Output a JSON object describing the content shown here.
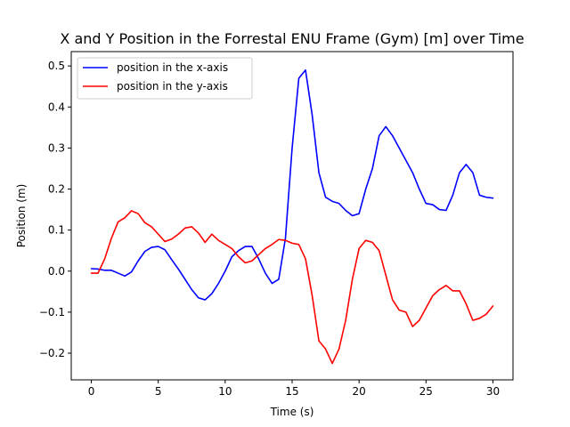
{
  "chart_data": {
    "type": "line",
    "title": "X and Y Position in the Forrestal ENU Frame (Gym) [m] over Time",
    "xlabel": "Time (s)",
    "ylabel": "Position (m)",
    "xlim": [
      -1.5,
      31.5
    ],
    "ylim": [
      -0.265,
      0.535
    ],
    "xticks": [
      0,
      5,
      10,
      15,
      20,
      25,
      30
    ],
    "xtick_labels": [
      "0",
      "5",
      "10",
      "15",
      "20",
      "25",
      "30"
    ],
    "yticks": [
      -0.2,
      -0.1,
      0.0,
      0.1,
      0.2,
      0.3,
      0.4,
      0.5
    ],
    "ytick_labels": [
      "−0.2",
      "−0.1",
      "0.0",
      "0.1",
      "0.2",
      "0.3",
      "0.4",
      "0.5"
    ],
    "grid": false,
    "legend_position": "top-left",
    "series": [
      {
        "name": "position in the x-axis",
        "color": "#0000ff",
        "x": [
          0,
          0.5,
          1.0,
          1.5,
          2.0,
          2.5,
          3.0,
          3.5,
          4.0,
          4.5,
          5.0,
          5.5,
          6.0,
          6.5,
          7.0,
          7.5,
          8.0,
          8.5,
          9.0,
          9.5,
          10.0,
          10.5,
          11.0,
          11.5,
          12.0,
          12.5,
          13.0,
          13.5,
          14.0,
          14.5,
          15.0,
          15.5,
          16.0,
          16.5,
          17.0,
          17.5,
          18.0,
          18.5,
          19.0,
          19.5,
          20.0,
          20.5,
          21.0,
          21.5,
          22.0,
          22.5,
          23.0,
          23.5,
          24.0,
          24.5,
          25.0,
          25.5,
          26.0,
          26.5,
          27.0,
          27.5,
          28.0,
          28.5,
          29.0,
          29.5,
          30.0
        ],
        "y": [
          0.006,
          0.005,
          0.002,
          0.002,
          -0.005,
          -0.012,
          -0.002,
          0.025,
          0.048,
          0.058,
          0.06,
          0.052,
          0.028,
          0.005,
          -0.02,
          -0.045,
          -0.065,
          -0.07,
          -0.055,
          -0.03,
          0.0,
          0.035,
          0.05,
          0.06,
          0.06,
          0.03,
          -0.005,
          -0.03,
          -0.02,
          0.08,
          0.3,
          0.47,
          0.49,
          0.38,
          0.24,
          0.18,
          0.17,
          0.165,
          0.148,
          0.135,
          0.14,
          0.2,
          0.25,
          0.33,
          0.352,
          0.33,
          0.3,
          0.27,
          0.24,
          0.2,
          0.165,
          0.162,
          0.15,
          0.148,
          0.185,
          0.24,
          0.26,
          0.24,
          0.185,
          0.18,
          0.178
        ]
      },
      {
        "name": "position in the y-axis",
        "color": "#ff0000",
        "x": [
          0,
          0.5,
          1.0,
          1.5,
          2.0,
          2.5,
          3.0,
          3.5,
          4.0,
          4.5,
          5.0,
          5.5,
          6.0,
          6.5,
          7.0,
          7.5,
          8.0,
          8.5,
          9.0,
          9.5,
          10.0,
          10.5,
          11.0,
          11.5,
          12.0,
          12.5,
          13.0,
          13.5,
          14.0,
          14.5,
          15.0,
          15.5,
          16.0,
          16.5,
          17.0,
          17.5,
          18.0,
          18.5,
          19.0,
          19.5,
          20.0,
          20.5,
          21.0,
          21.5,
          22.0,
          22.5,
          23.0,
          23.5,
          24.0,
          24.5,
          25.0,
          25.5,
          26.0,
          26.5,
          27.0,
          27.5,
          28.0,
          28.5,
          29.0,
          29.5,
          30.0
        ],
        "y": [
          -0.005,
          -0.005,
          0.03,
          0.08,
          0.12,
          0.13,
          0.147,
          0.14,
          0.118,
          0.108,
          0.09,
          0.072,
          0.078,
          0.09,
          0.105,
          0.108,
          0.093,
          0.07,
          0.09,
          0.075,
          0.065,
          0.055,
          0.035,
          0.02,
          0.025,
          0.04,
          0.055,
          0.065,
          0.077,
          0.075,
          0.068,
          0.065,
          0.03,
          -0.06,
          -0.17,
          -0.19,
          -0.225,
          -0.19,
          -0.12,
          -0.02,
          0.055,
          0.075,
          0.07,
          0.05,
          -0.01,
          -0.07,
          -0.095,
          -0.1,
          -0.135,
          -0.12,
          -0.09,
          -0.06,
          -0.045,
          -0.035,
          -0.048,
          -0.048,
          -0.08,
          -0.12,
          -0.115,
          -0.105,
          -0.085
        ]
      }
    ]
  }
}
